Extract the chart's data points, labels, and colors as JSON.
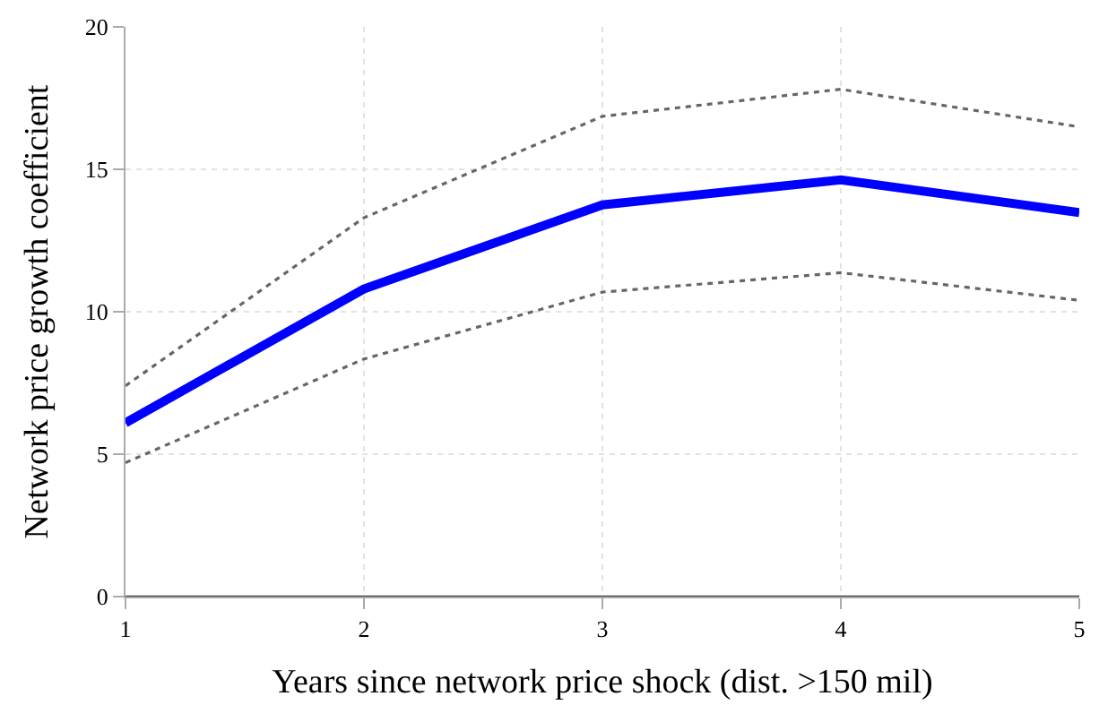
{
  "chart_data": {
    "type": "line",
    "xlabel": "Years since network price shock (dist. >150 mil)",
    "ylabel": "Network price growth coefficient",
    "x": [
      1,
      2,
      3,
      4,
      5
    ],
    "series": [
      {
        "color": "#0000ff",
        "values": [
          6.1,
          10.8,
          13.75,
          14.63,
          13.48
        ],
        "line_style": "solid"
      },
      {
        "color": "#666666",
        "values": [
          7.4,
          13.3,
          16.86,
          17.81,
          16.49
        ],
        "line_style": "dotted"
      },
      {
        "color": "#666666",
        "values": [
          4.7,
          8.34,
          10.69,
          11.37,
          10.4
        ],
        "line_style": "dotted"
      }
    ],
    "xlim": [
      1,
      5
    ],
    "xticks": [
      1,
      2,
      3,
      4,
      5
    ],
    "ylim": [
      0,
      20
    ],
    "yticks": [
      0,
      5,
      10,
      15,
      20
    ],
    "ref_lines": [
      {
        "axis": "y",
        "value": 0,
        "color": "#444444",
        "line_style": "solid"
      }
    ],
    "grid": true,
    "marker": "none"
  }
}
